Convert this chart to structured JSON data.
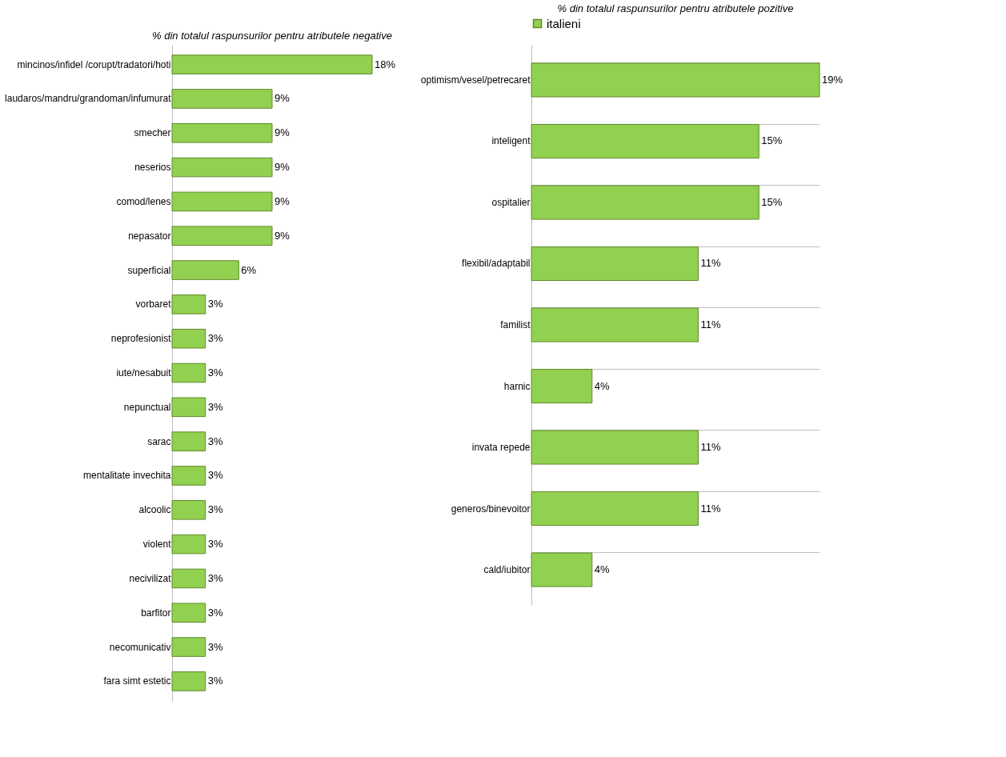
{
  "chart_data": [
    {
      "type": "bar",
      "orientation": "horizontal",
      "title": "% din totalul raspunsurilor pentru atributele negative",
      "tick_labels": "y",
      "grid": false,
      "categories": [
        "mincinos/infidel /corupt/tradatori/hoti",
        "laudaros/mandru/grandoman/infumurat",
        "smecher",
        "neserios",
        "comod/lenes",
        "nepasator",
        "superficial",
        "vorbaret",
        "neprofesionist",
        "iute/nesabuit",
        "nepunctual",
        "sarac",
        "mentalitate invechita",
        "alcoolic",
        "violent",
        "necivilizat",
        "barfitor",
        "necomunicativ",
        "fara simt estetic"
      ],
      "values": [
        18,
        9,
        9,
        9,
        9,
        9,
        6,
        3,
        3,
        3,
        3,
        3,
        3,
        3,
        3,
        3,
        3,
        3,
        3
      ],
      "value_labels": [
        "18%",
        "9%",
        "9%",
        "9%",
        "9%",
        "9%",
        "6%",
        "3%",
        "3%",
        "3%",
        "3%",
        "3%",
        "3%",
        "3%",
        "3%",
        "3%",
        "3%",
        "3%",
        "3%"
      ],
      "color": "#92d050"
    },
    {
      "type": "bar",
      "orientation": "horizontal",
      "title": "% din totalul raspunsurilor pentru atributele pozitive",
      "tick_labels": "y",
      "grid": "y",
      "legend": "top",
      "categories": [
        "optimism/vesel/petrecaret",
        "inteligent",
        "ospitalier",
        "flexibil/adaptabil",
        "familist",
        "harnic",
        "invata repede",
        "generos/binevoitor",
        "cald/iubitor"
      ],
      "series": [
        {
          "name": "italieni",
          "color": "#92d050",
          "values": [
            19,
            15,
            15,
            11,
            11,
            4,
            11,
            11,
            4
          ],
          "value_labels": [
            "19%",
            "15%",
            "15%",
            "11%",
            "11%",
            "4%",
            "11%",
            "11%",
            "4%"
          ]
        }
      ]
    }
  ]
}
